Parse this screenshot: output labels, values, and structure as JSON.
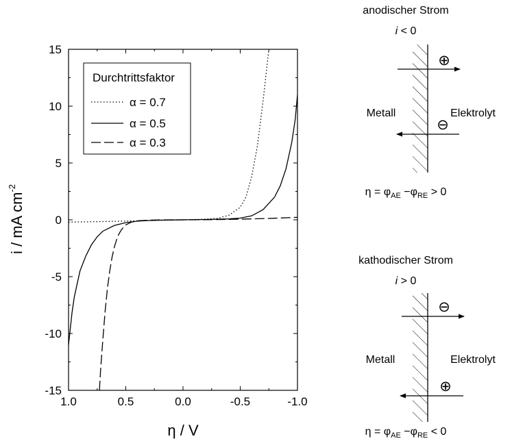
{
  "chart_data": {
    "type": "line",
    "xlabel_symbol": "η",
    "xlabel_unit": " / V",
    "ylabel_text": "i / mA cm",
    "ylabel_sup": "-2",
    "xlim": [
      1.0,
      -1.0
    ],
    "ylim": [
      -15,
      15
    ],
    "x_inverted": true,
    "xticks": [
      "1.0",
      "0.5",
      "0.0",
      "-0.5",
      "-1.0"
    ],
    "yticks": [
      "-15",
      "-10",
      "-5",
      "0",
      "5",
      "10",
      "15"
    ],
    "grid": false,
    "legend": {
      "title": "Durchtrittsfaktor",
      "position": "top-left",
      "symbol": "α",
      "eq": " = "
    },
    "series": [
      {
        "name": "0.7",
        "style": "dotted",
        "x": [
          1.0,
          0.8,
          0.6,
          0.4,
          0.2,
          0.0,
          -0.2,
          -0.3,
          -0.4,
          -0.5,
          -0.55,
          -0.6,
          -0.65,
          -0.7,
          -0.75
        ],
        "y": [
          -0.2,
          -0.17,
          -0.13,
          -0.09,
          -0.05,
          0.0,
          0.06,
          0.12,
          0.4,
          1.1,
          2.0,
          3.8,
          6.5,
          10.5,
          15.0
        ]
      },
      {
        "name": "0.5",
        "style": "solid",
        "x": [
          1.0,
          0.97,
          0.95,
          0.9,
          0.85,
          0.8,
          0.75,
          0.7,
          0.65,
          0.6,
          0.5,
          0.4,
          0.3,
          0.2,
          0.0,
          -0.2,
          -0.4,
          -0.5,
          -0.6,
          -0.7,
          -0.8,
          -0.85,
          -0.9,
          -0.95,
          -0.98,
          -1.0
        ],
        "y": [
          -11.0,
          -8.2,
          -6.8,
          -4.5,
          -3.2,
          -2.2,
          -1.5,
          -1.0,
          -0.75,
          -0.5,
          -0.25,
          -0.12,
          -0.06,
          -0.03,
          0.0,
          0.03,
          0.08,
          0.15,
          0.35,
          0.9,
          2.0,
          3.0,
          4.5,
          6.8,
          8.8,
          11.0
        ]
      },
      {
        "name": "0.3",
        "style": "dashed",
        "x": [
          0.73,
          0.72,
          0.7,
          0.68,
          0.66,
          0.64,
          0.62,
          0.6,
          0.58,
          0.56,
          0.54,
          0.52,
          0.5,
          0.45,
          0.4,
          0.3,
          0.2,
          0.0,
          -0.2,
          -0.4,
          -0.6,
          -0.8,
          -1.0
        ],
        "y": [
          -15.0,
          -13.2,
          -10.5,
          -8.0,
          -6.0,
          -4.5,
          -3.3,
          -2.4,
          -1.75,
          -1.25,
          -0.9,
          -0.65,
          -0.45,
          -0.2,
          -0.09,
          -0.03,
          -0.01,
          0.0,
          0.01,
          0.04,
          0.08,
          0.14,
          0.22
        ]
      }
    ]
  },
  "diagrams": [
    {
      "title": "anodischer Strom",
      "condition_symbol": "i",
      "condition_rest": " < 0",
      "left_label": "Metall",
      "right_label": "Elektrolyt",
      "top_charge": "⊕",
      "bottom_charge": "⊖",
      "top_arrow": "right",
      "bottom_arrow": "left",
      "eta": "η = φ",
      "sub1": "AE",
      "mid": " −φ",
      "sub2": "RE",
      "rel": " > 0"
    },
    {
      "title": "kathodischer Strom",
      "condition_symbol": "i",
      "condition_rest": " > 0",
      "left_label": "Metall",
      "right_label": "Elektrolyt",
      "top_charge": "⊖",
      "bottom_charge": "⊕",
      "top_arrow": "right",
      "bottom_arrow": "left",
      "eta": "η = φ",
      "sub1": "AE",
      "mid": " −φ",
      "sub2": "RE",
      "rel": " < 0"
    }
  ]
}
